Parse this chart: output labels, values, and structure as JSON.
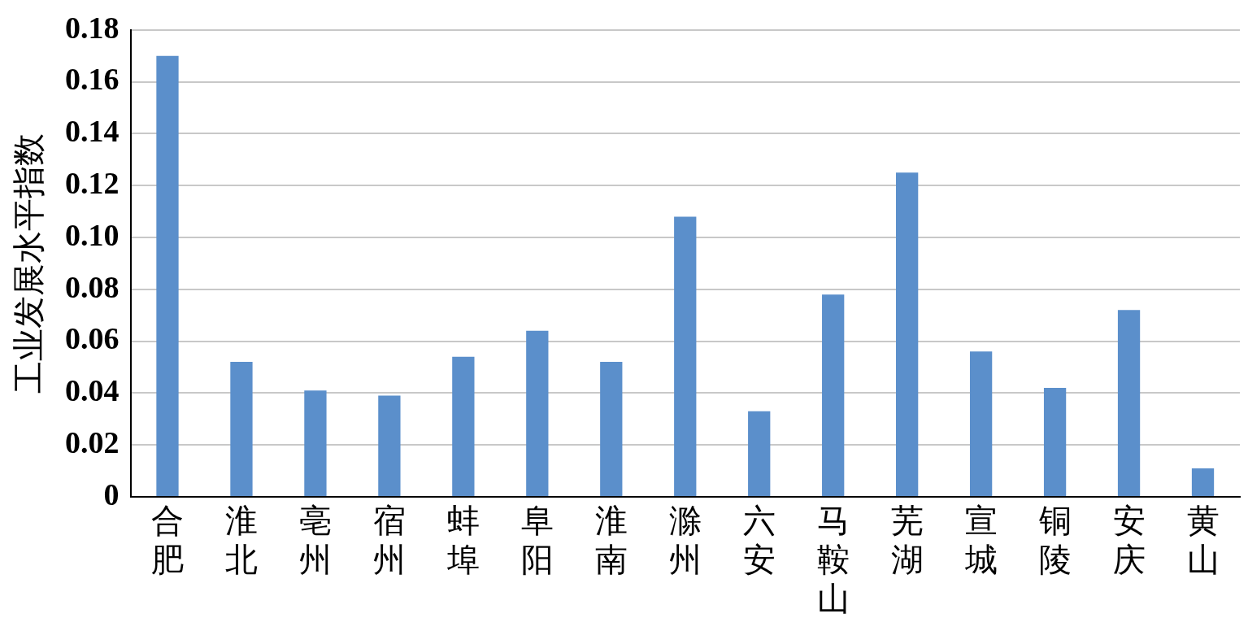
{
  "chart_data": {
    "type": "bar",
    "ylabel": "工业发展水平指数",
    "categories": [
      "合肥",
      "淮北",
      "亳州",
      "宿州",
      "蚌埠",
      "阜阳",
      "淮南",
      "滁州",
      "六安",
      "马鞍山",
      "芜湖",
      "宣城",
      "铜陵",
      "安庆",
      "黄山"
    ],
    "values": [
      0.17,
      0.052,
      0.041,
      0.039,
      0.054,
      0.064,
      0.052,
      0.108,
      0.033,
      0.078,
      0.125,
      0.056,
      0.042,
      0.072,
      0.011
    ],
    "color": "#5b8fcb",
    "ylim": [
      0,
      0.18
    ],
    "yticks": [
      0,
      {
        "value": 0.02,
        "label": "0.02"
      },
      {
        "value": 0.04,
        "label": "0.04"
      },
      {
        "value": 0.06,
        "label": "0.06"
      },
      {
        "value": 0.08,
        "label": "0.08"
      },
      {
        "value": 0.1,
        "label": "0.10"
      },
      {
        "value": 0.12,
        "label": "0.12"
      },
      {
        "value": 0.14,
        "label": "0.14"
      },
      {
        "value": 0.16,
        "label": "0.16"
      },
      {
        "value": 0.18,
        "label": "0.18"
      }
    ],
    "grid": "y",
    "legend": false
  }
}
